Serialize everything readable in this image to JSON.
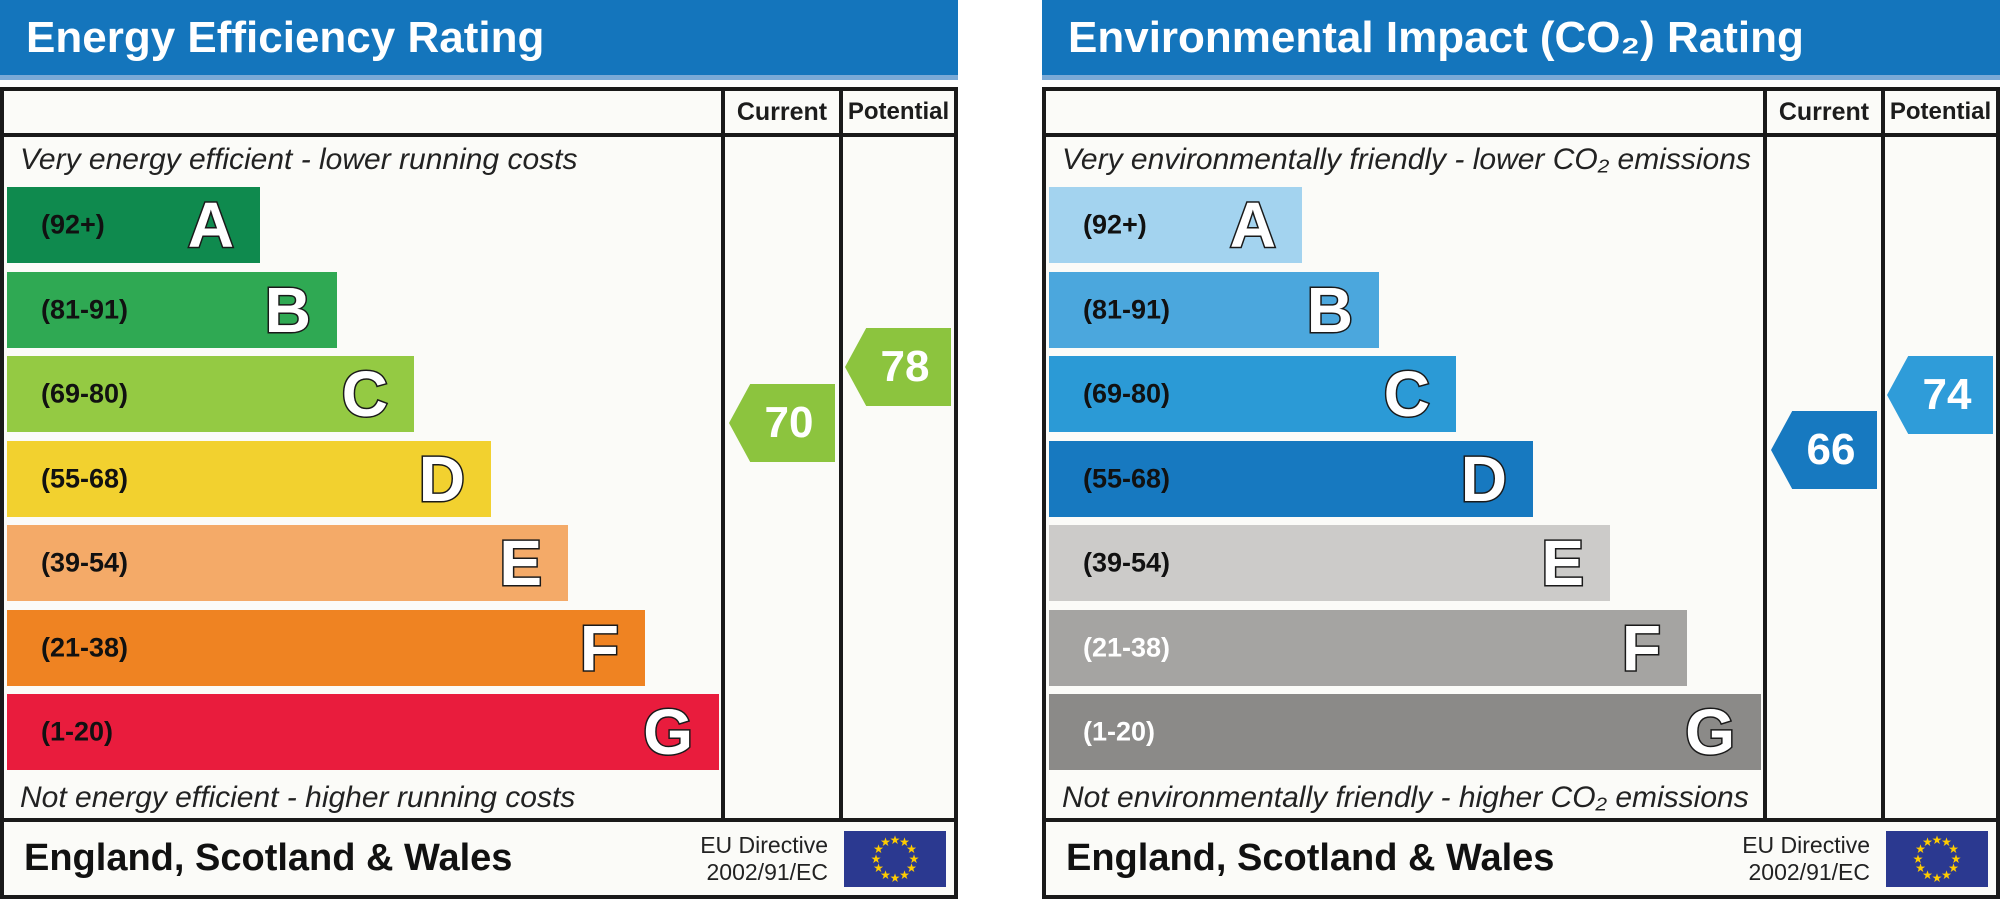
{
  "chart_data": [
    {
      "id": "energy-efficiency",
      "type": "bar",
      "title": "Energy Efficiency Rating",
      "columns": [
        "Current",
        "Potential"
      ],
      "top_caption": "Very energy efficient - lower running costs",
      "bottom_caption": "Not energy efficient - higher running costs",
      "bands": [
        {
          "letter": "A",
          "range": "(92+)",
          "min": 92,
          "max": 100,
          "color": "#0f8a4e",
          "label_color": "#111111",
          "width_frac": 0.355
        },
        {
          "letter": "B",
          "range": "(81-91)",
          "min": 81,
          "max": 91,
          "color": "#2fa953",
          "label_color": "#111111",
          "width_frac": 0.463
        },
        {
          "letter": "C",
          "range": "(69-80)",
          "min": 69,
          "max": 80,
          "color": "#94ca43",
          "label_color": "#111111",
          "width_frac": 0.572
        },
        {
          "letter": "D",
          "range": "(55-68)",
          "min": 55,
          "max": 68,
          "color": "#f2d12f",
          "label_color": "#111111",
          "width_frac": 0.68
        },
        {
          "letter": "E",
          "range": "(39-54)",
          "min": 39,
          "max": 54,
          "color": "#f4aa68",
          "label_color": "#111111",
          "width_frac": 0.788
        },
        {
          "letter": "F",
          "range": "(21-38)",
          "min": 21,
          "max": 38,
          "color": "#ef8322",
          "label_color": "#111111",
          "width_frac": 0.896
        },
        {
          "letter": "G",
          "range": "(1-20)",
          "min": 1,
          "max": 20,
          "color": "#e91c3d",
          "label_color": "#111111",
          "width_frac": 1.0
        }
      ],
      "current": {
        "value": 70,
        "band": "C",
        "color": "#8cc43e"
      },
      "potential": {
        "value": 78,
        "band": "C",
        "color": "#8cc43e"
      },
      "footer_region": "England, Scotland & Wales",
      "eu_directive_line1": "EU Directive",
      "eu_directive_line2": "2002/91/EC"
    },
    {
      "id": "environmental-impact",
      "type": "bar",
      "title": "Environmental Impact (CO₂) Rating",
      "columns": [
        "Current",
        "Potential"
      ],
      "top_caption": "Very environmentally friendly - lower CO₂ emissions",
      "bottom_caption": "Not environmentally friendly - higher CO₂ emissions",
      "bands": [
        {
          "letter": "A",
          "range": "(92+)",
          "min": 92,
          "max": 100,
          "color": "#a3d3ef",
          "label_color": "#111111",
          "width_frac": 0.355
        },
        {
          "letter": "B",
          "range": "(81-91)",
          "min": 81,
          "max": 91,
          "color": "#4ba7dd",
          "label_color": "#111111",
          "width_frac": 0.463
        },
        {
          "letter": "C",
          "range": "(69-80)",
          "min": 69,
          "max": 80,
          "color": "#2b9ad6",
          "label_color": "#111111",
          "width_frac": 0.572
        },
        {
          "letter": "D",
          "range": "(55-68)",
          "min": 55,
          "max": 68,
          "color": "#1779c0",
          "label_color": "#111111",
          "width_frac": 0.68
        },
        {
          "letter": "E",
          "range": "(39-54)",
          "min": 39,
          "max": 54,
          "color": "#cccbc9",
          "label_color": "#111111",
          "width_frac": 0.788
        },
        {
          "letter": "F",
          "range": "(21-38)",
          "min": 21,
          "max": 38,
          "color": "#a5a4a2",
          "label_color": "#ffffff",
          "width_frac": 0.896
        },
        {
          "letter": "G",
          "range": "(1-20)",
          "min": 1,
          "max": 20,
          "color": "#8b8a88",
          "label_color": "#ffffff",
          "width_frac": 1.0
        }
      ],
      "current": {
        "value": 66,
        "band": "D",
        "color": "#1779c0"
      },
      "potential": {
        "value": 74,
        "band": "C",
        "color": "#2f9cd9"
      },
      "footer_region": "England, Scotland & Wales",
      "eu_directive_line1": "EU Directive",
      "eu_directive_line2": "2002/91/EC"
    }
  ]
}
